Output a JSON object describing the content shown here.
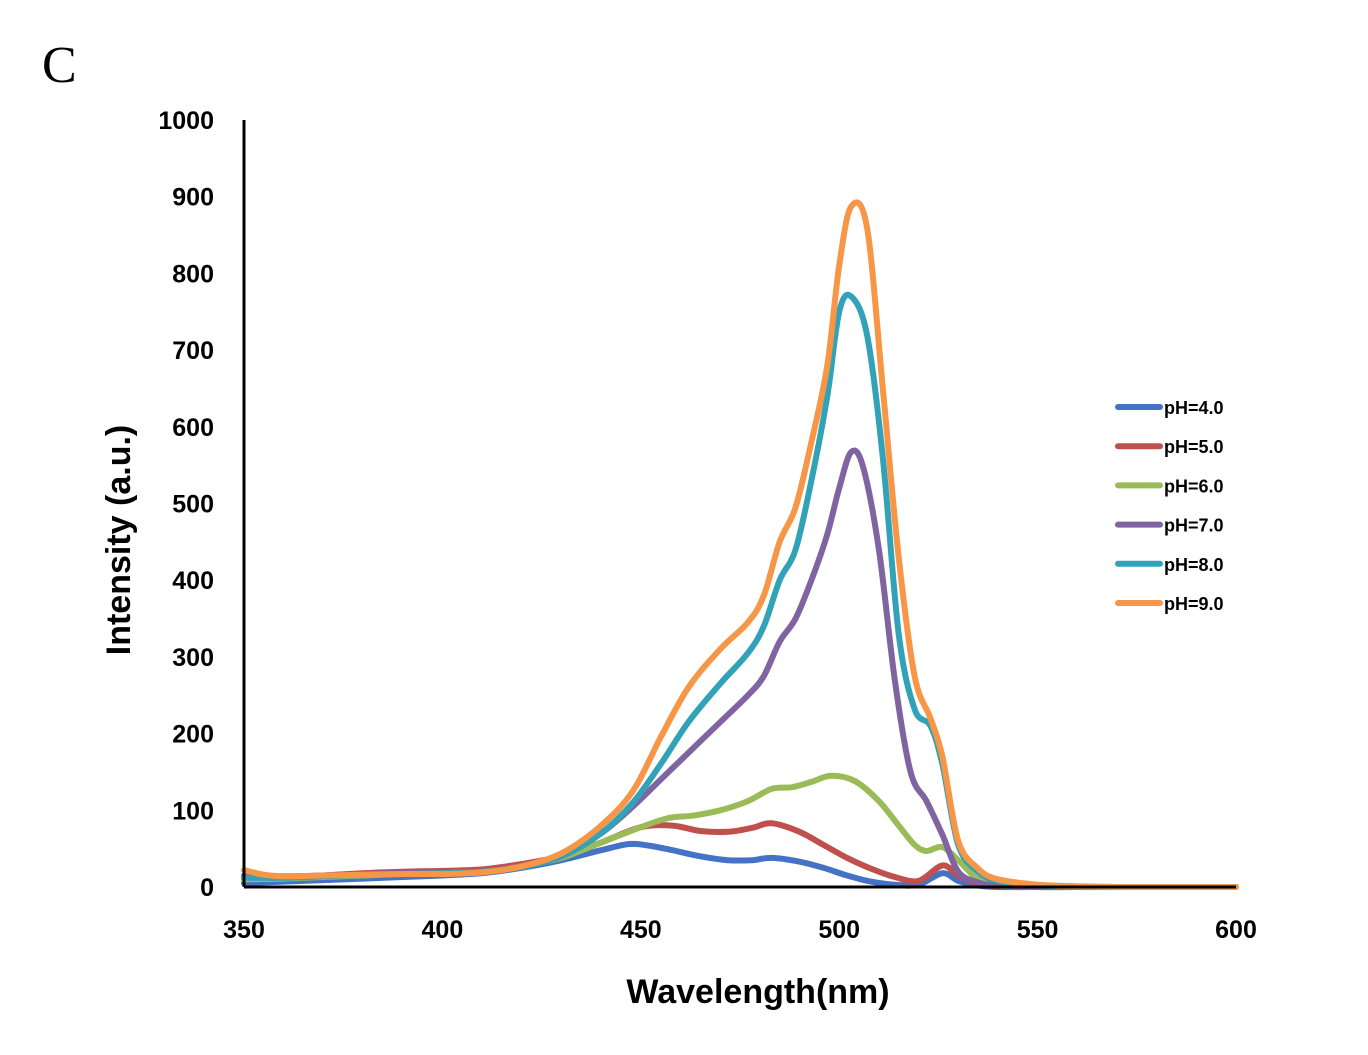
{
  "panel_label": "C",
  "chart_data": {
    "type": "line",
    "xlabel": "Wavelength(nm)",
    "ylabel": "Intensity (a.u.)",
    "xlim": [
      350,
      600
    ],
    "ylim": [
      0,
      1000
    ],
    "xticks": [
      "350",
      "400",
      "450",
      "500",
      "550",
      "600"
    ],
    "yticks": [
      "0",
      "100",
      "200",
      "300",
      "400",
      "500",
      "600",
      "700",
      "800",
      "900",
      "1000"
    ],
    "grid": false,
    "legend_position": "right",
    "series": [
      {
        "name": "pH=4.0",
        "color": "#4472C4",
        "points": [
          [
            350,
            5
          ],
          [
            360,
            7
          ],
          [
            370,
            9
          ],
          [
            380,
            11
          ],
          [
            390,
            13
          ],
          [
            400,
            15
          ],
          [
            410,
            18
          ],
          [
            420,
            25
          ],
          [
            430,
            35
          ],
          [
            440,
            48
          ],
          [
            447,
            56
          ],
          [
            452,
            54
          ],
          [
            458,
            48
          ],
          [
            465,
            40
          ],
          [
            472,
            35
          ],
          [
            478,
            35
          ],
          [
            483,
            38
          ],
          [
            490,
            33
          ],
          [
            496,
            25
          ],
          [
            502,
            15
          ],
          [
            508,
            7
          ],
          [
            514,
            3
          ],
          [
            520,
            3
          ],
          [
            526,
            18
          ],
          [
            530,
            8
          ],
          [
            535,
            2
          ],
          [
            540,
            0
          ],
          [
            550,
            0
          ],
          [
            560,
            0
          ],
          [
            575,
            0
          ],
          [
            600,
            0
          ]
        ]
      },
      {
        "name": "pH=5.0",
        "color": "#C0504D",
        "points": [
          [
            350,
            10
          ],
          [
            360,
            12
          ],
          [
            370,
            15
          ],
          [
            380,
            18
          ],
          [
            390,
            20
          ],
          [
            400,
            21
          ],
          [
            410,
            23
          ],
          [
            420,
            30
          ],
          [
            430,
            40
          ],
          [
            440,
            58
          ],
          [
            450,
            78
          ],
          [
            458,
            80
          ],
          [
            465,
            73
          ],
          [
            472,
            72
          ],
          [
            478,
            77
          ],
          [
            483,
            83
          ],
          [
            490,
            72
          ],
          [
            496,
            55
          ],
          [
            502,
            38
          ],
          [
            508,
            24
          ],
          [
            514,
            13
          ],
          [
            520,
            8
          ],
          [
            526,
            28
          ],
          [
            530,
            15
          ],
          [
            535,
            4
          ],
          [
            540,
            1
          ],
          [
            550,
            0
          ],
          [
            560,
            0
          ],
          [
            575,
            0
          ],
          [
            600,
            0
          ]
        ]
      },
      {
        "name": "pH=6.0",
        "color": "#9BBB59",
        "points": [
          [
            350,
            10
          ],
          [
            360,
            11
          ],
          [
            370,
            13
          ],
          [
            380,
            15
          ],
          [
            390,
            17
          ],
          [
            400,
            18
          ],
          [
            410,
            20
          ],
          [
            420,
            27
          ],
          [
            430,
            38
          ],
          [
            440,
            58
          ],
          [
            450,
            78
          ],
          [
            457,
            90
          ],
          [
            463,
            93
          ],
          [
            470,
            100
          ],
          [
            477,
            112
          ],
          [
            483,
            128
          ],
          [
            488,
            130
          ],
          [
            493,
            137
          ],
          [
            498,
            145
          ],
          [
            504,
            138
          ],
          [
            510,
            112
          ],
          [
            515,
            80
          ],
          [
            519,
            55
          ],
          [
            522,
            47
          ],
          [
            526,
            52
          ],
          [
            530,
            35
          ],
          [
            535,
            10
          ],
          [
            540,
            2
          ],
          [
            550,
            0
          ],
          [
            560,
            0
          ],
          [
            575,
            0
          ],
          [
            600,
            0
          ]
        ]
      },
      {
        "name": "pH=7.0",
        "color": "#8064A2",
        "points": [
          [
            350,
            15
          ],
          [
            360,
            14
          ],
          [
            370,
            15
          ],
          [
            380,
            17
          ],
          [
            390,
            18
          ],
          [
            400,
            18
          ],
          [
            410,
            20
          ],
          [
            420,
            27
          ],
          [
            430,
            40
          ],
          [
            440,
            70
          ],
          [
            448,
            105
          ],
          [
            455,
            140
          ],
          [
            462,
            175
          ],
          [
            470,
            215
          ],
          [
            477,
            250
          ],
          [
            481,
            275
          ],
          [
            485,
            320
          ],
          [
            489,
            350
          ],
          [
            493,
            400
          ],
          [
            497,
            460
          ],
          [
            500,
            520
          ],
          [
            503,
            567
          ],
          [
            506,
            548
          ],
          [
            510,
            440
          ],
          [
            514,
            270
          ],
          [
            518,
            150
          ],
          [
            522,
            112
          ],
          [
            526,
            68
          ],
          [
            530,
            20
          ],
          [
            535,
            6
          ],
          [
            540,
            2
          ],
          [
            550,
            0
          ],
          [
            560,
            0
          ],
          [
            575,
            0
          ],
          [
            600,
            0
          ]
        ]
      },
      {
        "name": "pH=8.0",
        "color": "#31A2B8",
        "points": [
          [
            350,
            12
          ],
          [
            360,
            12
          ],
          [
            370,
            14
          ],
          [
            380,
            16
          ],
          [
            390,
            17
          ],
          [
            400,
            18
          ],
          [
            410,
            20
          ],
          [
            420,
            26
          ],
          [
            430,
            40
          ],
          [
            440,
            70
          ],
          [
            448,
            110
          ],
          [
            455,
            160
          ],
          [
            462,
            215
          ],
          [
            470,
            265
          ],
          [
            477,
            305
          ],
          [
            481,
            340
          ],
          [
            485,
            400
          ],
          [
            489,
            440
          ],
          [
            493,
            530
          ],
          [
            497,
            640
          ],
          [
            500,
            750
          ],
          [
            503,
            770
          ],
          [
            507,
            720
          ],
          [
            511,
            560
          ],
          [
            515,
            330
          ],
          [
            519,
            232
          ],
          [
            523,
            210
          ],
          [
            526,
            160
          ],
          [
            530,
            55
          ],
          [
            535,
            20
          ],
          [
            540,
            8
          ],
          [
            550,
            2
          ],
          [
            560,
            0
          ],
          [
            575,
            0
          ],
          [
            600,
            0
          ]
        ]
      },
      {
        "name": "pH=9.0",
        "color": "#F79646",
        "points": [
          [
            350,
            22
          ],
          [
            355,
            16
          ],
          [
            360,
            14
          ],
          [
            370,
            15
          ],
          [
            380,
            16
          ],
          [
            390,
            17
          ],
          [
            400,
            17
          ],
          [
            410,
            19
          ],
          [
            420,
            27
          ],
          [
            430,
            44
          ],
          [
            440,
            80
          ],
          [
            448,
            125
          ],
          [
            455,
            195
          ],
          [
            462,
            260
          ],
          [
            470,
            310
          ],
          [
            477,
            345
          ],
          [
            481,
            380
          ],
          [
            485,
            450
          ],
          [
            489,
            495
          ],
          [
            493,
            580
          ],
          [
            497,
            680
          ],
          [
            500,
            810
          ],
          [
            503,
            887
          ],
          [
            507,
            860
          ],
          [
            511,
            650
          ],
          [
            515,
            430
          ],
          [
            519,
            275
          ],
          [
            523,
            220
          ],
          [
            526,
            170
          ],
          [
            530,
            60
          ],
          [
            535,
            24
          ],
          [
            540,
            10
          ],
          [
            550,
            3
          ],
          [
            560,
            1
          ],
          [
            575,
            0
          ],
          [
            600,
            0
          ]
        ]
      }
    ]
  }
}
